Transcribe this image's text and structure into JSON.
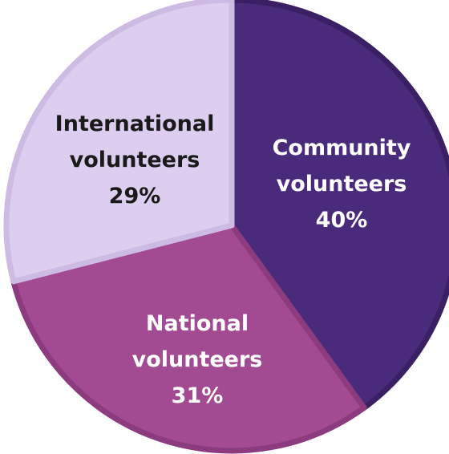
{
  "chart_data": {
    "type": "pie",
    "slices": [
      {
        "label_lines": [
          "Community",
          "volunteers",
          "40%"
        ],
        "value": 40,
        "color": "#4a2a7a",
        "edge_color": "#3a1f64",
        "label_color": "#ffffff"
      },
      {
        "label_lines": [
          "National",
          "volunteers",
          "31%"
        ],
        "value": 31,
        "color": "#a24a92",
        "edge_color": "#8c3c7e",
        "label_color": "#ffffff"
      },
      {
        "label_lines": [
          "International",
          "volunteers",
          "29%"
        ],
        "value": 29,
        "color": "#ddcdef",
        "edge_color": "#cdbbe3",
        "label_color": "#1a1a1a"
      }
    ]
  }
}
